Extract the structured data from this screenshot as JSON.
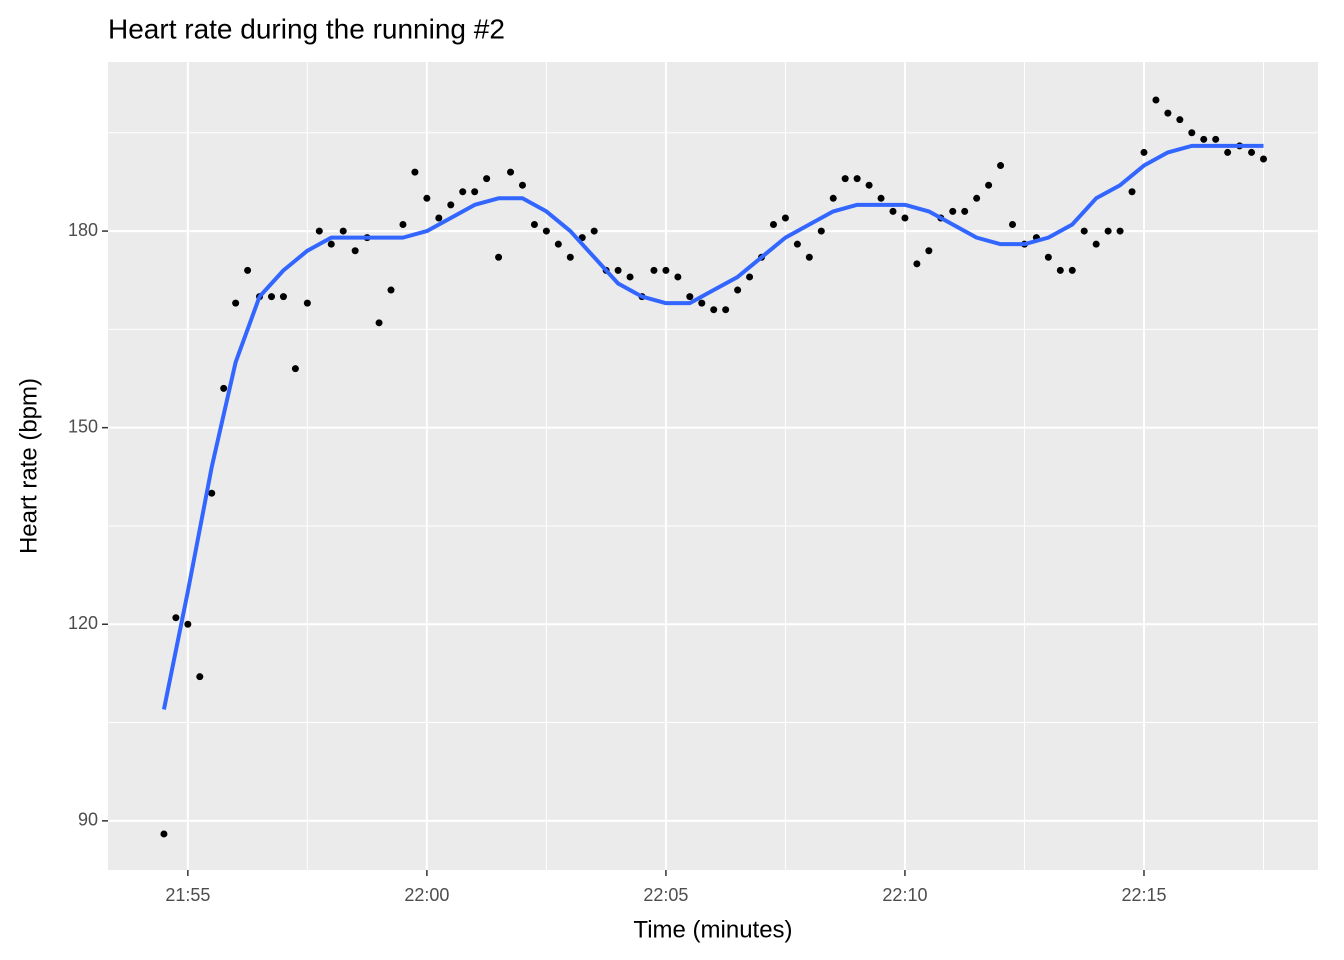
{
  "chart_data": {
    "type": "scatter",
    "title": "Heart rate during the running #2",
    "x_label": "Time (minutes)",
    "y_label": "Heart rate (bpm)",
    "series": [
      {
        "mode": "points",
        "color": "#000000",
        "x": [
          1314.5,
          1314.75,
          1315,
          1315.25,
          1315.5,
          1315.75,
          1316,
          1316.25,
          1316.5,
          1316.75,
          1317,
          1317.25,
          1317.5,
          1317.75,
          1318,
          1318.25,
          1318.5,
          1318.75,
          1319,
          1319.25,
          1319.5,
          1319.75,
          1320,
          1320.25,
          1320.5,
          1320.75,
          1321,
          1321.25,
          1321.5,
          1321.75,
          1322,
          1322.25,
          1322.5,
          1322.75,
          1323,
          1323.25,
          1323.5,
          1323.75,
          1324,
          1324.25,
          1324.5,
          1324.75,
          1325,
          1325.25,
          1325.5,
          1325.75,
          1326,
          1326.25,
          1326.5,
          1326.75,
          1327,
          1327.25,
          1327.5,
          1327.75,
          1328,
          1328.25,
          1328.5,
          1328.75,
          1329,
          1329.25,
          1329.5,
          1329.75,
          1330,
          1330.25,
          1330.5,
          1330.75,
          1331,
          1331.25,
          1331.5,
          1331.75,
          1332,
          1332.25,
          1332.5,
          1332.75,
          1333,
          1333.25,
          1333.5,
          1333.75,
          1334,
          1334.25,
          1334.5,
          1334.75,
          1335,
          1335.25,
          1335.5,
          1335.75,
          1336,
          1336.25,
          1336.5,
          1336.75,
          1337,
          1337.25,
          1337.5
        ],
        "values": [
          88,
          121,
          120,
          112,
          140,
          156,
          169,
          174,
          170,
          170,
          170,
          159,
          169,
          180,
          178,
          180,
          177,
          179,
          166,
          171,
          181,
          189,
          185,
          182,
          184,
          186,
          186,
          188,
          176,
          189,
          187,
          181,
          180,
          178,
          176,
          179,
          180,
          174,
          174,
          173,
          170,
          174,
          174,
          173,
          170,
          169,
          168,
          168,
          171,
          173,
          176,
          181,
          182,
          178,
          176,
          180,
          185,
          188,
          188,
          187,
          185,
          183,
          182,
          175,
          177,
          182,
          183,
          183,
          185,
          187,
          190,
          181,
          178,
          179,
          176,
          174,
          174,
          180,
          178,
          180,
          180,
          186,
          192,
          200,
          198,
          197,
          195,
          194,
          194,
          192,
          193,
          192,
          191
        ]
      },
      {
        "mode": "line",
        "color": "#3366ff",
        "x": [
          1314.5,
          1315,
          1315.5,
          1316,
          1316.5,
          1317,
          1317.5,
          1318,
          1318.5,
          1319,
          1319.5,
          1320,
          1320.5,
          1321,
          1321.5,
          1322,
          1322.5,
          1323,
          1323.5,
          1324,
          1324.5,
          1325,
          1325.5,
          1326,
          1326.5,
          1327,
          1327.5,
          1328,
          1328.5,
          1329,
          1329.5,
          1330,
          1330.5,
          1331,
          1331.5,
          1332,
          1332.5,
          1333,
          1333.5,
          1334,
          1334.5,
          1335,
          1335.5,
          1336,
          1336.5,
          1337,
          1337.5
        ],
        "values": [
          107,
          125,
          144,
          160,
          170,
          174,
          177,
          179,
          179,
          179,
          179,
          180,
          182,
          184,
          185,
          185,
          183,
          180,
          176,
          172,
          170,
          169,
          169,
          171,
          173,
          176,
          179,
          181,
          183,
          184,
          184,
          184,
          183,
          181,
          179,
          178,
          178,
          179,
          181,
          185,
          187,
          190,
          192,
          193,
          193,
          193,
          193
        ]
      }
    ],
    "xlim": [
      1313.33,
      1338.64
    ],
    "ylim": [
      82.5,
      205.8
    ],
    "xticks": [
      {
        "value": 1315,
        "label": "21:55"
      },
      {
        "value": 1320,
        "label": "22:00"
      },
      {
        "value": 1325,
        "label": "22:05"
      },
      {
        "value": 1330,
        "label": "22:10"
      },
      {
        "value": 1335,
        "label": "22:15"
      }
    ],
    "yticks": [
      90,
      120,
      150,
      180
    ],
    "x_minor_ticks": [
      1317.5,
      1322.5,
      1327.5,
      1332.5,
      1337.5
    ],
    "y_minor_ticks": [
      105,
      135,
      165,
      195
    ],
    "grid": true
  }
}
